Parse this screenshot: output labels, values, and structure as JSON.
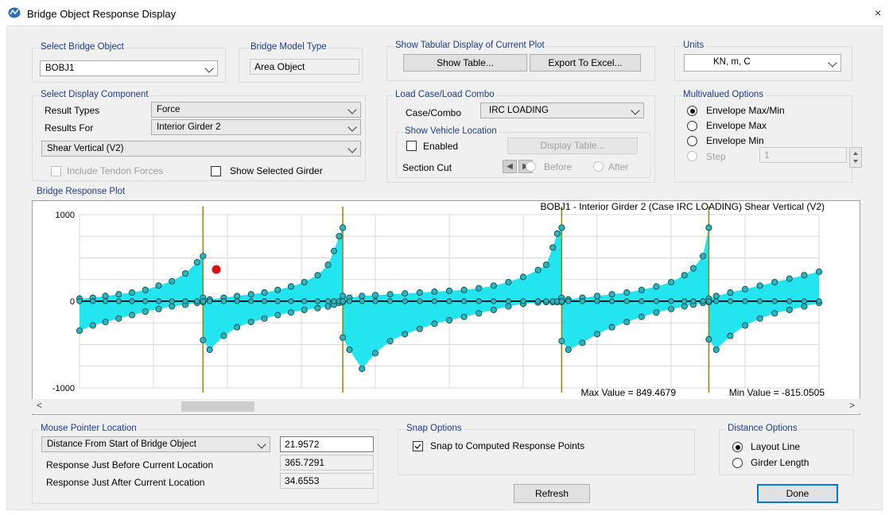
{
  "window": {
    "title": "Bridge Object Response Display",
    "close": "×"
  },
  "select_bridge_object": {
    "title": "Select Bridge Object",
    "value": "BOBJ1"
  },
  "bridge_model_type": {
    "title": "Bridge Model Type",
    "value": "Area Object"
  },
  "tabular": {
    "title": "Show Tabular Display of Current Plot",
    "show_table": "Show Table...",
    "export_excel": "Export To Excel..."
  },
  "units": {
    "title": "Units",
    "value": "KN, m, C"
  },
  "display_component": {
    "title": "Select Display Component",
    "result_types_label": "Result Types",
    "result_types_value": "Force",
    "results_for_label": "Results For",
    "results_for_value": "Interior Girder 2",
    "component_value": "Shear Vertical  (V2)",
    "include_tendon": "Include Tendon Forces",
    "show_selected_girder": "Show Selected Girder"
  },
  "load_case": {
    "title": "Load Case/Load Combo",
    "case_label": "Case/Combo",
    "case_value": "IRC LOADING",
    "vehicle_title": "Show Vehicle Location",
    "enabled": "Enabled",
    "display_table": "Display Table...",
    "section_cut": "Section Cut",
    "before": "Before",
    "after": "After"
  },
  "multivalued": {
    "title": "Multivalued Options",
    "options": [
      "Envelope Max/Min",
      "Envelope Max",
      "Envelope Min",
      "Step"
    ],
    "step_value": "1"
  },
  "plot": {
    "group_title": "Bridge Response Plot",
    "header": "BOBJ1 - Interior Girder 2   (Case IRC LOADING)   Shear Vertical  (V2)",
    "max_text": "Max Value = 849.4679",
    "min_text": "Min Value = -815.0505",
    "fill_color": "#22e5f0",
    "marker_color": "#2bb5c0",
    "support_color": "#8a8a00",
    "pointer_color": "#e01010"
  },
  "chart_data": {
    "type": "area",
    "title": "BOBJ1 - Interior Girder 2   (Case IRC LOADING)   Shear Vertical  (V2)",
    "yticks": [
      "1000",
      "0",
      "-1000"
    ],
    "ylim": [
      -1000,
      1000
    ],
    "xlim": [
      0,
      100
    ],
    "grid": true,
    "supports_x": [
      16.7,
      35.6,
      65.2,
      85.1
    ],
    "pointer": {
      "x": 18.5,
      "y": 365.7
    },
    "series": [
      {
        "name": "Envelope Max",
        "x": [
          0,
          1.8,
          3.5,
          5.3,
          7.1,
          8.9,
          10.7,
          12.5,
          14.3,
          15.9,
          16.7,
          16.7,
          17.6,
          19.5,
          21.3,
          23.2,
          25,
          26.8,
          28.6,
          30.4,
          32.2,
          33.6,
          34.4,
          35.1,
          35.6,
          35.6,
          36.5,
          38.2,
          40,
          42,
          44,
          46,
          48,
          50,
          52,
          54,
          56,
          58,
          60,
          62,
          63.1,
          64,
          64.6,
          65.2,
          65.2,
          66.1,
          68,
          70,
          72,
          74,
          76,
          78,
          80,
          81.8,
          83,
          84.3,
          85.1,
          85.1,
          86.1,
          88,
          90,
          92,
          94,
          96,
          98,
          100
        ],
        "y": [
          30,
          40,
          60,
          80,
          100,
          130,
          180,
          230,
          320,
          450,
          520,
          40,
          20,
          40,
          60,
          80,
          100,
          130,
          170,
          220,
          300,
          420,
          580,
          750,
          849,
          60,
          40,
          60,
          70,
          80,
          90,
          100,
          110,
          120,
          130,
          150,
          180,
          220,
          280,
          360,
          420,
          620,
          780,
          849,
          40,
          20,
          40,
          60,
          80,
          100,
          130,
          170,
          220,
          300,
          380,
          520,
          849,
          30,
          60,
          100,
          140,
          180,
          220,
          260,
          300,
          340
        ]
      },
      {
        "name": "Envelope Min",
        "x": [
          0,
          1.8,
          3.5,
          5.3,
          7.1,
          8.9,
          10.7,
          12.5,
          14.3,
          15.9,
          16.7,
          16.7,
          17.6,
          19.5,
          21.3,
          23.2,
          25,
          26.8,
          28.6,
          30.4,
          32.2,
          33.6,
          34.4,
          35.1,
          35.6,
          35.6,
          36.5,
          38.2,
          40,
          42,
          44,
          46,
          48,
          50,
          52,
          54,
          56,
          58,
          60,
          62,
          63.1,
          64,
          64.6,
          65.2,
          65.2,
          66.1,
          68,
          70,
          72,
          74,
          76,
          78,
          80,
          81.8,
          83,
          84.3,
          85.1,
          85.1,
          86.1,
          88,
          90,
          92,
          94,
          96,
          98,
          100
        ],
        "y": [
          -340,
          -280,
          -240,
          -200,
          -160,
          -120,
          -90,
          -60,
          -40,
          -20,
          -10,
          -450,
          -560,
          -400,
          -300,
          -240,
          -200,
          -160,
          -130,
          -100,
          -80,
          -60,
          -40,
          -20,
          -10,
          -420,
          -560,
          -780,
          -600,
          -460,
          -380,
          -320,
          -260,
          -220,
          -180,
          -140,
          -100,
          -60,
          -30,
          -15,
          -10,
          -10,
          -10,
          -10,
          -460,
          -560,
          -480,
          -380,
          -300,
          -240,
          -180,
          -130,
          -90,
          -60,
          -40,
          -20,
          -10,
          -440,
          -560,
          -400,
          -280,
          -200,
          -140,
          -100,
          -60,
          -20
        ]
      }
    ]
  },
  "mouse_pointer": {
    "title": "Mouse Pointer Location",
    "distance_combo": "Distance From Start of Bridge Object",
    "distance_value": "21.9572",
    "before_label": "Response Just Before Current Location",
    "before_value": "365.7291",
    "after_label": "Response Just After Current Location",
    "after_value": "34.6553"
  },
  "snap": {
    "title": "Snap Options",
    "label": "Snap to Computed Response Points"
  },
  "distance_options": {
    "title": "Distance Options",
    "layout_line": "Layout Line",
    "girder_length": "Girder Length"
  },
  "footer": {
    "refresh": "Refresh",
    "done": "Done"
  },
  "scroll": {
    "left": "<",
    "right": ">"
  }
}
